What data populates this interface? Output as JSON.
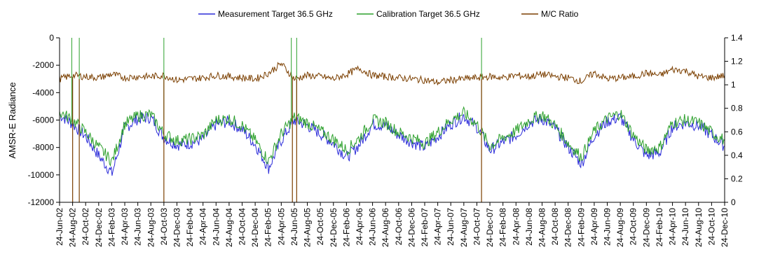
{
  "chart_data": {
    "type": "line",
    "title": "",
    "ylabel": "AMSR-E Radiance",
    "y2label": "",
    "ylim": [
      -12000,
      0
    ],
    "y2lim": [
      0,
      1.4
    ],
    "y_ticks": [
      "0",
      "-2000",
      "-4000",
      "-6000",
      "-8000",
      "-10000",
      "-12000"
    ],
    "y_tick_values": [
      0,
      -2000,
      -4000,
      -6000,
      -8000,
      -10000,
      -12000
    ],
    "y2_ticks": [
      "1.4",
      "1.2",
      "1",
      "0.8",
      "0.6",
      "0.4",
      "0.2",
      "0"
    ],
    "y2_tick_values": [
      1.4,
      1.2,
      1.0,
      0.8,
      0.6,
      0.4,
      0.2,
      0
    ],
    "x_tick_labels": [
      "24-Jun-02",
      "24-Aug-02",
      "24-Oct-02",
      "24-Dec-02",
      "24-Feb-03",
      "24-Apr-03",
      "24-Jun-03",
      "24-Aug-03",
      "24-Oct-03",
      "24-Dec-03",
      "24-Feb-04",
      "24-Apr-04",
      "24-Jun-04",
      "24-Aug-04",
      "24-Oct-04",
      "24-Dec-04",
      "24-Feb-05",
      "24-Apr-05",
      "24-Jun-05",
      "24-Aug-05",
      "24-Oct-05",
      "24-Dec-05",
      "24-Feb-06",
      "24-Apr-06",
      "24-Jun-06",
      "24-Aug-06",
      "24-Oct-06",
      "24-Dec-06",
      "24-Feb-07",
      "24-Apr-07",
      "24-Jun-07",
      "24-Aug-07",
      "24-Oct-07",
      "24-Dec-07",
      "24-Feb-08",
      "24-Apr-08",
      "24-Jun-08",
      "24-Aug-08",
      "24-Oct-08",
      "24-Dec-08",
      "24-Feb-09",
      "24-Apr-09",
      "24-Jun-09",
      "24-Aug-09",
      "24-Oct-09",
      "24-Dec-09",
      "24-Feb-10",
      "24-Apr-10",
      "24-Jun-10",
      "24-Aug-10",
      "24-Oct-10",
      "24-Dec-10"
    ],
    "grid": false,
    "legend_position": "top",
    "series": [
      {
        "name": "Measurement Target 36.5 GHz",
        "axis": "left",
        "color": "#2b2bd9",
        "x": [
          "2002-06-24",
          "2002-08-24",
          "2002-10-24",
          "2002-12-24",
          "2003-02-24",
          "2003-04-24",
          "2003-06-24",
          "2003-08-24",
          "2003-10-24",
          "2003-12-24",
          "2004-02-24",
          "2004-04-24",
          "2004-06-24",
          "2004-08-24",
          "2004-10-24",
          "2004-12-24",
          "2005-02-24",
          "2005-04-24",
          "2005-06-24",
          "2005-08-24",
          "2005-10-24",
          "2005-12-24",
          "2006-02-24",
          "2006-04-24",
          "2006-06-24",
          "2006-08-24",
          "2006-10-24",
          "2006-12-24",
          "2007-02-24",
          "2007-04-24",
          "2007-06-24",
          "2007-08-24",
          "2007-10-24",
          "2007-12-24",
          "2008-02-24",
          "2008-04-24",
          "2008-06-24",
          "2008-08-24",
          "2008-10-24",
          "2008-12-24",
          "2009-02-24",
          "2009-04-24",
          "2009-06-24",
          "2009-08-24",
          "2009-10-24",
          "2009-12-24",
          "2010-02-24",
          "2010-04-24",
          "2010-06-24",
          "2010-08-24",
          "2010-10-24",
          "2010-12-24"
        ],
        "values": [
          -5600,
          -6300,
          -7200,
          -8600,
          -9900,
          -6600,
          -5900,
          -5800,
          -7300,
          -7800,
          -7700,
          -7400,
          -6300,
          -6100,
          -6700,
          -7800,
          -9500,
          -7500,
          -6000,
          -6400,
          -7000,
          -7700,
          -8700,
          -7800,
          -6300,
          -6400,
          -7100,
          -7600,
          -8000,
          -7200,
          -6300,
          -5700,
          -6500,
          -8200,
          -7600,
          -7100,
          -6200,
          -5900,
          -6600,
          -8000,
          -9200,
          -7100,
          -6100,
          -5800,
          -7400,
          -8600,
          -8400,
          -6500,
          -6200,
          -6400,
          -7100,
          -7900
        ]
      },
      {
        "name": "Calibration Target 36.5 GHz",
        "axis": "left",
        "color": "#2ca02c",
        "x": [
          "2002-06-24",
          "2002-08-24",
          "2002-10-24",
          "2002-12-24",
          "2003-02-24",
          "2003-04-24",
          "2003-06-24",
          "2003-08-24",
          "2003-10-24",
          "2003-12-24",
          "2004-02-24",
          "2004-04-24",
          "2004-06-24",
          "2004-08-24",
          "2004-10-24",
          "2004-12-24",
          "2005-02-24",
          "2005-04-24",
          "2005-06-24",
          "2005-08-24",
          "2005-10-24",
          "2005-12-24",
          "2006-02-24",
          "2006-04-24",
          "2006-06-24",
          "2006-08-24",
          "2006-10-24",
          "2006-12-24",
          "2007-02-24",
          "2007-04-24",
          "2007-06-24",
          "2007-08-24",
          "2007-10-24",
          "2007-12-24",
          "2008-02-24",
          "2008-04-24",
          "2008-06-24",
          "2008-08-24",
          "2008-10-24",
          "2008-12-24",
          "2009-02-24",
          "2009-04-24",
          "2009-06-24",
          "2009-08-24",
          "2009-10-24",
          "2009-12-24",
          "2010-02-24",
          "2010-04-24",
          "2010-06-24",
          "2010-08-24",
          "2010-10-24",
          "2010-12-24"
        ],
        "values": [
          -5400,
          -6000,
          -6900,
          -8000,
          -9000,
          -6300,
          -5700,
          -5600,
          -7000,
          -7500,
          -7400,
          -7100,
          -6000,
          -5900,
          -6400,
          -7500,
          -9000,
          -7000,
          -5800,
          -6200,
          -6800,
          -7400,
          -8200,
          -7300,
          -6000,
          -6200,
          -6900,
          -7300,
          -7700,
          -6900,
          -6000,
          -5500,
          -6300,
          -7900,
          -7300,
          -6800,
          -6000,
          -5600,
          -6400,
          -7700,
          -8700,
          -6800,
          -5900,
          -5500,
          -7100,
          -8200,
          -8000,
          -6200,
          -6000,
          -6200,
          -6900,
          -7500
        ]
      },
      {
        "name": "M/C Ratio",
        "axis": "right",
        "color": "#7b3f00",
        "x": [
          "2002-06-24",
          "2002-08-24",
          "2002-10-24",
          "2002-12-24",
          "2003-02-24",
          "2003-04-24",
          "2003-06-24",
          "2003-08-24",
          "2003-10-24",
          "2003-12-24",
          "2004-02-24",
          "2004-04-24",
          "2004-06-24",
          "2004-08-24",
          "2004-10-24",
          "2004-12-24",
          "2005-02-24",
          "2005-04-24",
          "2005-06-24",
          "2005-08-24",
          "2005-10-24",
          "2005-12-24",
          "2006-02-24",
          "2006-04-24",
          "2006-06-24",
          "2006-08-24",
          "2006-10-24",
          "2006-12-24",
          "2007-02-24",
          "2007-04-24",
          "2007-06-24",
          "2007-08-24",
          "2007-10-24",
          "2007-12-24",
          "2008-02-24",
          "2008-04-24",
          "2008-06-24",
          "2008-08-24",
          "2008-10-24",
          "2008-12-24",
          "2009-02-24",
          "2009-04-24",
          "2009-06-24",
          "2009-08-24",
          "2009-10-24",
          "2009-12-24",
          "2010-02-24",
          "2010-04-24",
          "2010-06-24",
          "2010-08-24",
          "2010-10-24",
          "2010-12-24"
        ],
        "values": [
          1.05,
          1.08,
          1.07,
          1.06,
          1.09,
          1.06,
          1.07,
          1.07,
          1.08,
          1.04,
          1.05,
          1.06,
          1.08,
          1.07,
          1.06,
          1.05,
          1.1,
          1.18,
          1.05,
          1.08,
          1.07,
          1.05,
          1.09,
          1.14,
          1.08,
          1.07,
          1.06,
          1.05,
          1.04,
          1.02,
          1.04,
          1.05,
          1.06,
          1.07,
          1.06,
          1.08,
          1.07,
          1.09,
          1.07,
          1.06,
          1.03,
          1.1,
          1.05,
          1.06,
          1.07,
          1.1,
          1.08,
          1.13,
          1.12,
          1.07,
          1.06,
          1.08
        ]
      }
    ],
    "dropouts_ratio_to_zero": [
      "2002-08-24",
      "2002-09-24",
      "2003-10-24",
      "2005-06-15",
      "2005-07-05",
      "2007-11-15"
    ],
    "spikes_to_zero_left": [
      "2002-08-20",
      "2002-09-24",
      "2003-10-24",
      "2005-06-10",
      "2005-07-05",
      "2007-11-15"
    ]
  }
}
